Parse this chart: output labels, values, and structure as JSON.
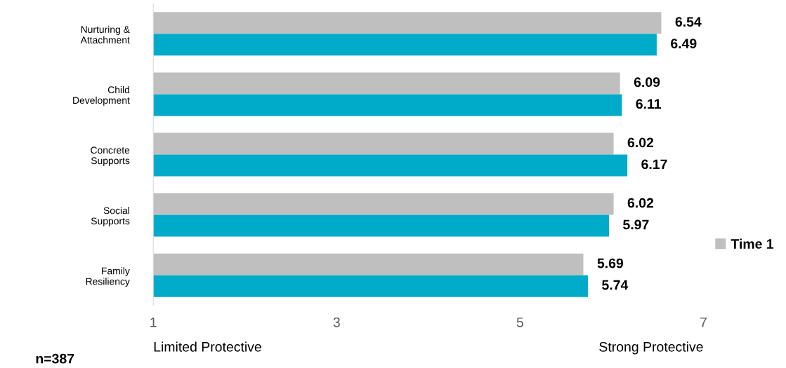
{
  "chart_data": {
    "type": "bar",
    "orientation": "horizontal",
    "categories": [
      "Nurturing &\nAttachment",
      "Child\nDevelopment",
      "Concrete\nSupports",
      "Social\nSupports",
      "Family\nResiliency"
    ],
    "series": [
      {
        "name": "Time 1",
        "color": "#bfbfbf",
        "values": [
          6.54,
          6.09,
          6.02,
          6.02,
          5.69
        ]
      },
      {
        "color": "#00aac9",
        "values": [
          6.49,
          6.11,
          6.17,
          5.97,
          5.74
        ]
      }
    ],
    "xlim": [
      1,
      7
    ],
    "xticks": [
      1,
      3,
      5,
      7
    ],
    "data_labels": true,
    "legend": "right",
    "grid": false,
    "annotations": [
      "Limited Protective",
      "Strong Protective",
      "n=387"
    ]
  }
}
